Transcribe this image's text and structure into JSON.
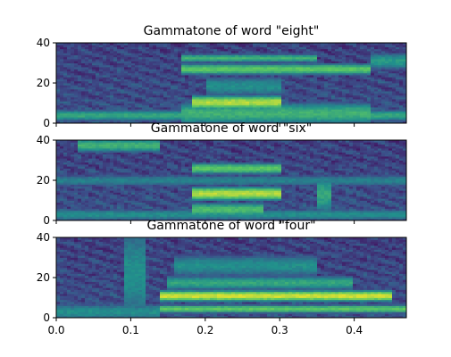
{
  "chart_data": [
    {
      "type": "heatmap",
      "title": "Gammatone of word \"eight\"",
      "xlabel": "",
      "ylabel": "",
      "xlim": [
        0.0,
        0.47
      ],
      "ylim": [
        0,
        40
      ],
      "yticks": [
        "0",
        "20",
        "40"
      ],
      "xticks": [],
      "colormap": "viridis",
      "bands": [
        {
          "x": [
            0.0,
            0.47
          ],
          "y": [
            2,
            6
          ],
          "intensity": 0.55
        },
        {
          "x": [
            0.17,
            0.42
          ],
          "y": [
            1,
            9
          ],
          "intensity": 0.6
        },
        {
          "x": [
            0.18,
            0.3
          ],
          "y": [
            8,
            13
          ],
          "intensity": 0.85
        },
        {
          "x": [
            0.17,
            0.42
          ],
          "y": [
            25,
            29
          ],
          "intensity": 0.7
        },
        {
          "x": [
            0.17,
            0.35
          ],
          "y": [
            31,
            34
          ],
          "intensity": 0.6
        },
        {
          "x": [
            0.2,
            0.3
          ],
          "y": [
            15,
            22
          ],
          "intensity": 0.45
        },
        {
          "x": [
            0.42,
            0.47
          ],
          "y": [
            28,
            34
          ],
          "intensity": 0.5
        }
      ]
    },
    {
      "type": "heatmap",
      "title": "Gammatone of word \"six\"",
      "xlabel": "",
      "ylabel": "",
      "xlim": [
        0.0,
        0.47
      ],
      "ylim": [
        0,
        40
      ],
      "yticks": [
        "0",
        "20",
        "40"
      ],
      "xticks": [],
      "colormap": "viridis",
      "bands": [
        {
          "x": [
            0.0,
            0.47
          ],
          "y": [
            1,
            5
          ],
          "intensity": 0.45
        },
        {
          "x": [
            0.18,
            0.3
          ],
          "y": [
            11,
            16
          ],
          "intensity": 0.85
        },
        {
          "x": [
            0.18,
            0.28
          ],
          "y": [
            3,
            8
          ],
          "intensity": 0.65
        },
        {
          "x": [
            0.18,
            0.3
          ],
          "y": [
            24,
            28
          ],
          "intensity": 0.7
        },
        {
          "x": [
            0.03,
            0.14
          ],
          "y": [
            35,
            40
          ],
          "intensity": 0.6
        },
        {
          "x": [
            0.0,
            0.47
          ],
          "y": [
            18,
            22
          ],
          "intensity": 0.4
        },
        {
          "x": [
            0.35,
            0.37
          ],
          "y": [
            6,
            20
          ],
          "intensity": 0.55
        }
      ]
    },
    {
      "type": "heatmap",
      "title": "Gammatone of word \"four\"",
      "xlabel": "",
      "ylabel": "",
      "xlim": [
        0.0,
        0.47
      ],
      "ylim": [
        0,
        40
      ],
      "yticks": [
        "0",
        "20",
        "40"
      ],
      "xticks": [
        "0.0",
        "0.1",
        "0.2",
        "0.3",
        "0.4"
      ],
      "xtick_values": [
        0.0,
        0.1,
        0.2,
        0.3,
        0.4
      ],
      "colormap": "viridis",
      "bands": [
        {
          "x": [
            0.14,
            0.45
          ],
          "y": [
            9,
            13
          ],
          "intensity": 0.9
        },
        {
          "x": [
            0.14,
            0.47
          ],
          "y": [
            3,
            6
          ],
          "intensity": 0.7
        },
        {
          "x": [
            0.15,
            0.4
          ],
          "y": [
            15,
            20
          ],
          "intensity": 0.55
        },
        {
          "x": [
            0.0,
            0.14
          ],
          "y": [
            0,
            6
          ],
          "intensity": 0.45
        },
        {
          "x": [
            0.16,
            0.35
          ],
          "y": [
            22,
            30
          ],
          "intensity": 0.45
        },
        {
          "x": [
            0.09,
            0.12
          ],
          "y": [
            4,
            40
          ],
          "intensity": 0.45
        }
      ]
    }
  ]
}
